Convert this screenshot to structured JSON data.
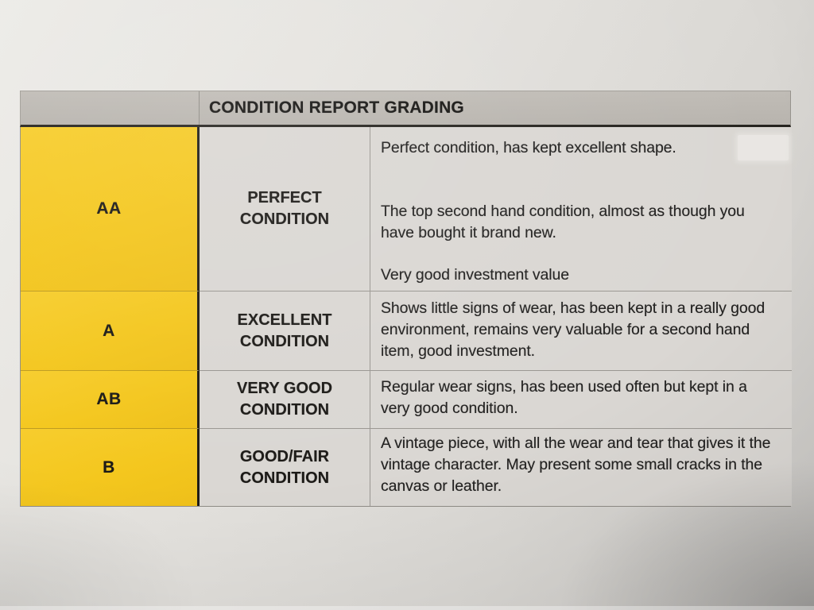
{
  "table": {
    "title": "CONDITION REPORT GRADING",
    "rows": [
      {
        "grade": "AA",
        "label": "PERFECT\nCONDITION",
        "paragraphs": [
          "Perfect condition, has kept excellent shape.",
          "The top second hand condition, almost as though you have bought it brand new.",
          "Very good investment value"
        ]
      },
      {
        "grade": "A",
        "label": "EXCELLENT\nCONDITION",
        "paragraphs": [
          "Shows little signs of wear, has been kept in a really good environment, remains very valuable for a second hand item, good investment."
        ]
      },
      {
        "grade": "AB",
        "label": "VERY GOOD\nCONDITION",
        "paragraphs": [
          "Regular wear signs, has been used often but kept in a very good condition."
        ]
      },
      {
        "grade": "B",
        "label": "GOOD/FAIR\nCONDITION",
        "paragraphs": [
          "A vintage piece, with all the wear and tear that gives it the vintage character. May present some small cracks in the canvas or leather."
        ]
      }
    ],
    "colors": {
      "grade_yellow": "#f4c71e",
      "header_gray": "#bab6b0",
      "cell_gray": "#dad7d3",
      "text": "#1f1e1c"
    }
  }
}
